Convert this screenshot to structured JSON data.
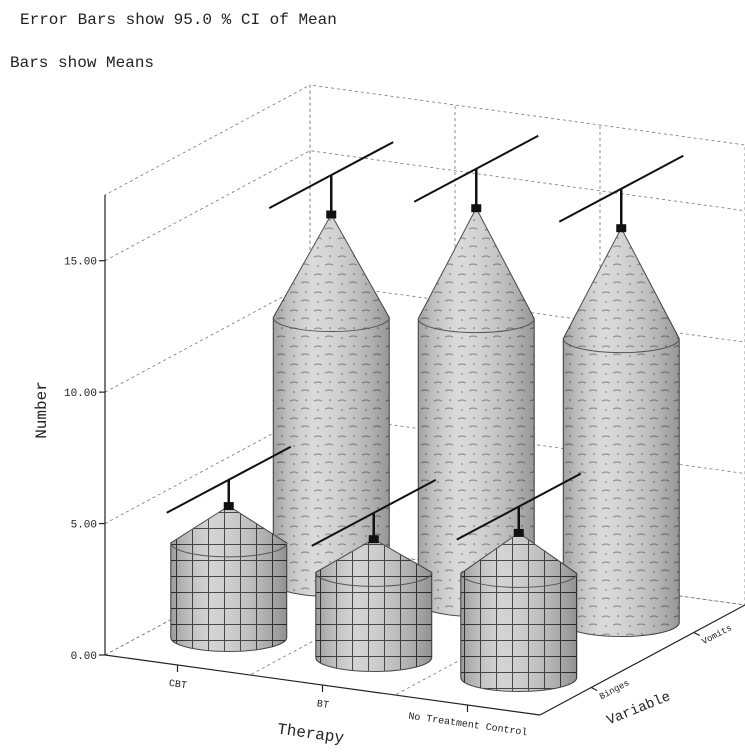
{
  "chart_data": {
    "type": "bar3d",
    "title": "Error Bars show 95.0 % CI of Mean",
    "subtitle": "Bars show Means",
    "y_label": "Number",
    "x_label": "Therapy",
    "z_label": "Variable",
    "categories": [
      "CBT",
      "BT",
      "No Treatment Control"
    ],
    "series": [
      {
        "name": "Binges",
        "color": "#c8c8c8",
        "values": [
          5.0,
          4.5,
          5.5
        ],
        "errors": [
          1.0,
          1.0,
          1.0
        ]
      },
      {
        "name": "Vomits",
        "color": "#d4d4d4",
        "values": [
          14.0,
          15.0,
          15.0
        ],
        "errors": [
          1.5,
          1.5,
          1.5
        ]
      }
    ],
    "ylim": [
      0,
      17.5
    ],
    "yticks": [
      {
        "value": 0,
        "label": "0.00"
      },
      {
        "value": 5,
        "label": "5.00"
      },
      {
        "value": 10,
        "label": "10.00"
      },
      {
        "value": 15,
        "label": "15.00"
      }
    ],
    "grid": true
  }
}
